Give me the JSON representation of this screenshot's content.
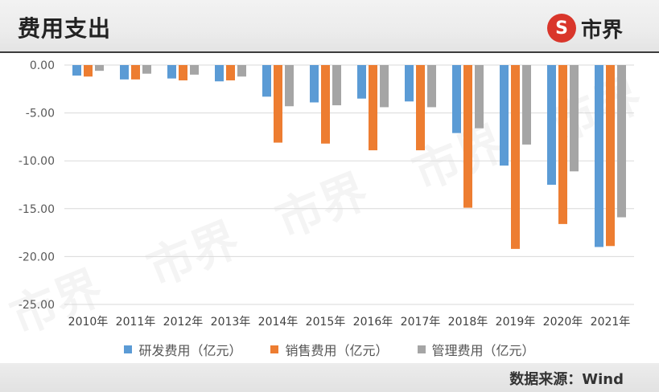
{
  "header": {
    "title": "费用支出",
    "logo_mark": "S",
    "logo_text": "市界"
  },
  "footer": {
    "source": "数据来源：Wind"
  },
  "watermark_text": "市界",
  "colors": {
    "rd": "#5b9bd5",
    "sales": "#ed7d31",
    "admin": "#a5a5a5",
    "grid": "#d9d9d9"
  },
  "chart_data": {
    "type": "bar",
    "title": "",
    "xlabel": "",
    "ylabel": "",
    "ylim": [
      -25,
      0
    ],
    "yticks": [
      "0.00",
      "-5.00",
      "-10.00",
      "-15.00",
      "-20.00",
      "-25.00"
    ],
    "ytick_values": [
      0,
      -5,
      -10,
      -15,
      -20,
      -25
    ],
    "grid": true,
    "legend_position": "bottom",
    "categories": [
      "2010年",
      "2011年",
      "2012年",
      "2013年",
      "2014年",
      "2015年",
      "2016年",
      "2017年",
      "2018年",
      "2019年",
      "2020年",
      "2021年"
    ],
    "series": [
      {
        "name": "研发费用（亿元）",
        "color": "#5b9bd5",
        "values": [
          -1.1,
          -1.5,
          -1.4,
          -1.7,
          -3.3,
          -3.9,
          -3.5,
          -3.8,
          -7.1,
          -10.5,
          -12.5,
          -19.0
        ]
      },
      {
        "name": "销售费用（亿元）",
        "color": "#ed7d31",
        "values": [
          -1.2,
          -1.5,
          -1.6,
          -1.6,
          -8.1,
          -8.2,
          -8.9,
          -8.9,
          -14.9,
          -19.2,
          -16.6,
          -18.9
        ]
      },
      {
        "name": "管理费用（亿元）",
        "color": "#a5a5a5",
        "values": [
          -0.6,
          -0.9,
          -1.0,
          -1.2,
          -4.3,
          -4.2,
          -4.4,
          -4.4,
          -6.6,
          -8.3,
          -11.1,
          -15.9
        ]
      }
    ]
  }
}
